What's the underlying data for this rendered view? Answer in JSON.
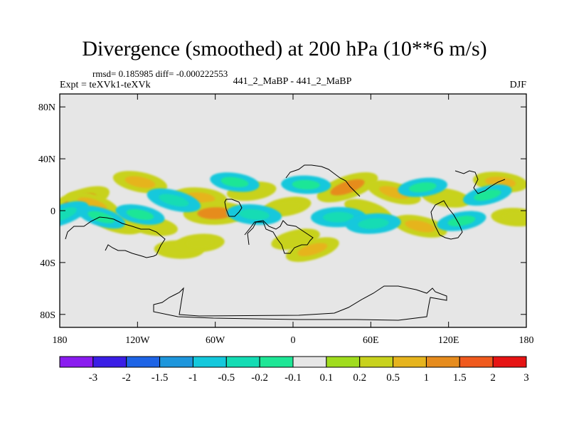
{
  "chart_data": {
    "type": "heatmap",
    "title": "Divergence (smoothed) at 200 hPa (10**6 m/s)",
    "stats": "rmsd= 0.185985 diff= -0.000222553",
    "left_label": "Expt = teXVk1-teXVk",
    "center_label": "441_2_MaBP - 441_2_MaBP",
    "season": "DJF",
    "x_ticks": [
      "180",
      "120W",
      "60W",
      "0",
      "60E",
      "120E",
      "180"
    ],
    "y_ticks": [
      "80N",
      "40N",
      "0",
      "40S",
      "80S"
    ],
    "xlim": [
      -180,
      180
    ],
    "ylim": [
      -90,
      90
    ],
    "colorbar": {
      "levels": [
        "-3",
        "-2",
        "-1.5",
        "-1",
        "-0.5",
        "-0.2",
        "-0.1",
        "0.1",
        "0.2",
        "0.5",
        "1",
        "1.5",
        "2",
        "3"
      ],
      "colors": [
        "#8a1cf0",
        "#3a1ee6",
        "#1e64e6",
        "#1e96dc",
        "#14c8dc",
        "#14dcb4",
        "#1ee696",
        "#e6e6e6",
        "#a0dc1e",
        "#c8d21e",
        "#e6b41e",
        "#e68c1e",
        "#f05a1e",
        "#e61414"
      ]
    },
    "positive_anomalies": [
      {
        "lon": -165,
        "lat": 7,
        "value": 1.0
      },
      {
        "lon": -155,
        "lat": 5,
        "value": 0.5
      },
      {
        "lon": -135,
        "lat": -10,
        "value": 0.2
      },
      {
        "lon": -118,
        "lat": 22,
        "value": 0.5
      },
      {
        "lon": -108,
        "lat": -12,
        "value": 0.2
      },
      {
        "lon": -72,
        "lat": 10,
        "value": 0.5
      },
      {
        "lon": -88,
        "lat": -30,
        "value": 0.2
      },
      {
        "lon": -60,
        "lat": -2,
        "value": 1.0
      },
      {
        "lon": -72,
        "lat": -25,
        "value": 0.2
      },
      {
        "lon": -32,
        "lat": 15,
        "value": 0.2
      },
      {
        "lon": -5,
        "lat": 3,
        "value": 0.2
      },
      {
        "lon": 2,
        "lat": -22,
        "value": 0.2
      },
      {
        "lon": 15,
        "lat": -30,
        "value": 0.5
      },
      {
        "lon": 42,
        "lat": 18,
        "value": 1.0
      },
      {
        "lon": 58,
        "lat": 0,
        "value": 0.2
      },
      {
        "lon": 78,
        "lat": 14,
        "value": 0.5
      },
      {
        "lon": 98,
        "lat": -12,
        "value": 0.5
      },
      {
        "lon": 118,
        "lat": 10,
        "value": 0.2
      },
      {
        "lon": 160,
        "lat": 22,
        "value": 0.5
      },
      {
        "lon": 172,
        "lat": -5,
        "value": 0.2
      }
    ],
    "negative_anomalies": [
      {
        "lon": -178,
        "lat": -3,
        "value": -0.5
      },
      {
        "lon": -148,
        "lat": -5,
        "value": -0.2
      },
      {
        "lon": -92,
        "lat": 8,
        "value": -0.5
      },
      {
        "lon": -118,
        "lat": -3,
        "value": -0.2
      },
      {
        "lon": -45,
        "lat": 22,
        "value": -0.2
      },
      {
        "lon": -30,
        "lat": -3,
        "value": -0.5
      },
      {
        "lon": 10,
        "lat": 20,
        "value": -0.2
      },
      {
        "lon": 35,
        "lat": -5,
        "value": -0.5
      },
      {
        "lon": 62,
        "lat": -10,
        "value": -0.5
      },
      {
        "lon": 100,
        "lat": 18,
        "value": -0.2
      },
      {
        "lon": 130,
        "lat": -8,
        "value": -0.2
      },
      {
        "lon": 150,
        "lat": 12,
        "value": -0.2
      }
    ]
  }
}
